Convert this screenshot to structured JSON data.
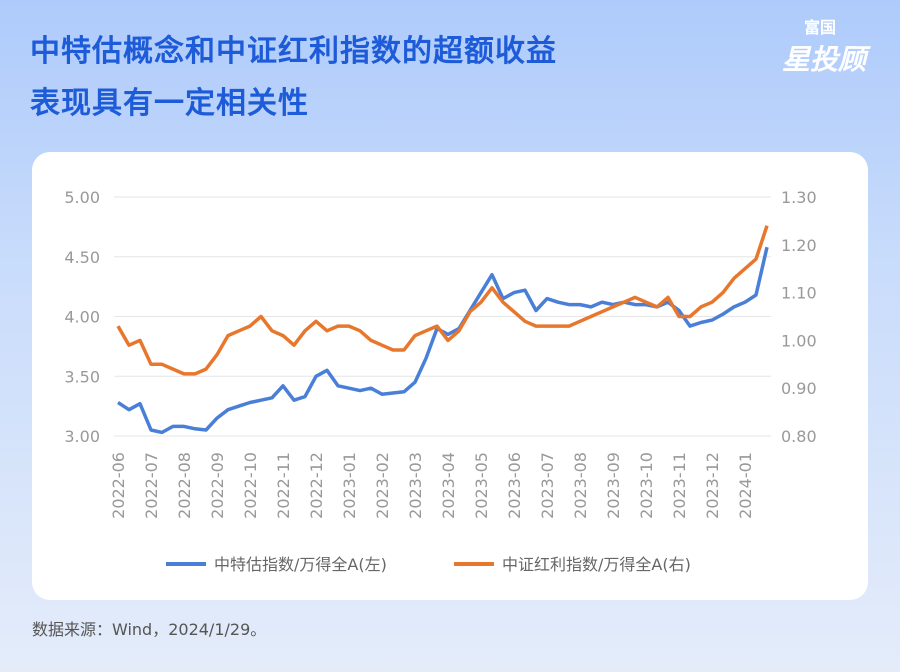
{
  "header": {
    "title_lines": [
      "中特估概念和中证红利指数的超额收益",
      "表现具有一定相关性"
    ],
    "logo_top": "富国",
    "logo_bottom": "星投顾"
  },
  "chart_data": {
    "type": "line",
    "categories": [
      "2022-06",
      null,
      null,
      "2022-07",
      null,
      null,
      "2022-08",
      null,
      null,
      "2022-09",
      null,
      null,
      "2022-10",
      null,
      null,
      "2022-11",
      null,
      null,
      "2022-12",
      null,
      null,
      "2023-01",
      null,
      null,
      "2023-02",
      null,
      null,
      "2023-03",
      null,
      null,
      "2023-04",
      null,
      null,
      "2023-05",
      null,
      null,
      "2023-06",
      null,
      null,
      "2023-07",
      null,
      null,
      "2023-08",
      null,
      null,
      "2023-09",
      null,
      null,
      "2023-10",
      null,
      null,
      "2023-11",
      null,
      null,
      "2023-12",
      null,
      null,
      "2024-01",
      null,
      null
    ],
    "series": [
      {
        "name": "中特估指数/万得全A(左)",
        "color": "#4a7fd8",
        "axis": "y",
        "values": [
          3.28,
          3.22,
          3.27,
          3.05,
          3.03,
          3.08,
          3.08,
          3.06,
          3.05,
          3.15,
          3.22,
          3.25,
          3.28,
          3.3,
          3.32,
          3.42,
          3.3,
          3.33,
          3.5,
          3.55,
          3.42,
          3.4,
          3.38,
          3.4,
          3.35,
          3.36,
          3.37,
          3.45,
          3.65,
          3.9,
          3.85,
          3.9,
          4.05,
          4.2,
          4.35,
          4.15,
          4.2,
          4.22,
          4.05,
          4.15,
          4.12,
          4.1,
          4.1,
          4.08,
          4.12,
          4.1,
          4.12,
          4.1,
          4.1,
          4.08,
          4.12,
          4.05,
          3.92,
          3.95,
          3.97,
          4.02,
          4.08,
          4.12,
          4.18,
          4.58
        ]
      },
      {
        "name": "中证红利指数/万得全A(右)",
        "color": "#e8772e",
        "axis": "y2",
        "values": [
          1.03,
          0.99,
          1.0,
          0.95,
          0.95,
          0.94,
          0.93,
          0.93,
          0.94,
          0.97,
          1.01,
          1.02,
          1.03,
          1.05,
          1.02,
          1.01,
          0.99,
          1.02,
          1.04,
          1.02,
          1.03,
          1.03,
          1.02,
          1.0,
          0.99,
          0.98,
          0.98,
          1.01,
          1.02,
          1.03,
          1.0,
          1.02,
          1.06,
          1.08,
          1.11,
          1.08,
          1.06,
          1.04,
          1.03,
          1.03,
          1.03,
          1.03,
          1.04,
          1.05,
          1.06,
          1.07,
          1.08,
          1.09,
          1.08,
          1.07,
          1.09,
          1.05,
          1.05,
          1.07,
          1.08,
          1.1,
          1.13,
          1.15,
          1.17,
          1.24
        ]
      }
    ],
    "ylim": [
      3,
      5
    ],
    "yticks": [
      {
        "value": 3,
        "label": "3.00"
      },
      {
        "value": 3.5,
        "label": "3.50"
      },
      {
        "value": 4,
        "label": "4.00"
      },
      {
        "value": 4.5,
        "label": "4.50"
      },
      {
        "value": 5,
        "label": "5.00"
      }
    ],
    "y2lim": [
      0.8,
      1.3
    ],
    "y2ticks": [
      {
        "value": 0.8,
        "label": "0.80"
      },
      {
        "value": 0.9,
        "label": "0.90"
      },
      {
        "value": 1,
        "label": "1.00"
      },
      {
        "value": 1.1,
        "label": "1.10"
      },
      {
        "value": 1.2,
        "label": "1.20"
      },
      {
        "value": 1.3,
        "label": "1.30"
      }
    ],
    "grid": true,
    "legend": "bottom"
  },
  "source": "数据来源：Wind，2024/1/29。"
}
